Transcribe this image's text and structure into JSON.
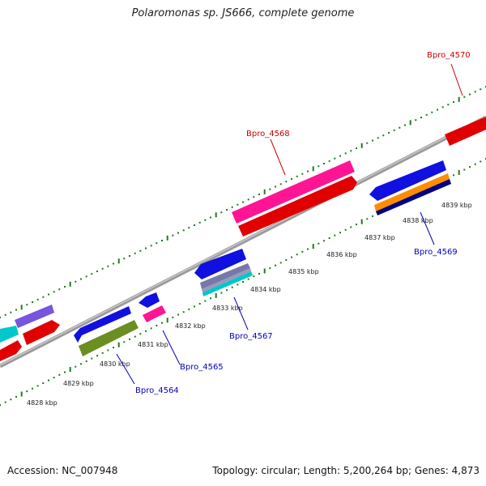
{
  "title": "Polaromonas sp. JS666, complete genome",
  "footer": {
    "accession": "Accession: NC_007948",
    "stats": "Topology: circular; Length: 5,200,264 bp; Genes: 4,873"
  },
  "colors": {
    "backbone": "#8a8a8a",
    "tick_dots": "#1f7a1f",
    "label_top": "#cc0000",
    "label_bottom": "#0000bb"
  },
  "kbp_labels": [
    "4828 kbp",
    "4829 kbp",
    "4830 kbp",
    "4831 kbp",
    "4832 kbp",
    "4833 kbp",
    "4834 kbp",
    "4835 kbp",
    "4836 kbp",
    "4837 kbp",
    "4838 kbp",
    "4839 kbp"
  ],
  "gene_labels": [
    {
      "text": "Bpro_4570",
      "color": "#cc0000"
    },
    {
      "text": "Bpro_4568",
      "color": "#cc0000"
    },
    {
      "text": "Bpro_4569",
      "color": "#0000bb"
    },
    {
      "text": "Bpro_4567",
      "color": "#0000bb"
    },
    {
      "text": "Bpro_4565",
      "color": "#0000bb"
    },
    {
      "text": "Bpro_4564",
      "color": "#0000bb"
    }
  ],
  "genes": [
    {
      "name": "gene-red-left-edge",
      "color": "#e00000"
    },
    {
      "name": "gene-cyan-left-edge",
      "color": "#00c8c8"
    },
    {
      "name": "gene-purple-left",
      "color": "#7755dd"
    },
    {
      "name": "gene-red-left",
      "color": "#e00000"
    },
    {
      "name": "gene-blue-4564",
      "color": "#1010e0"
    },
    {
      "name": "gene-olive-4564",
      "color": "#6b8e23"
    },
    {
      "name": "gene-blue-small",
      "color": "#1010e0"
    },
    {
      "name": "gene-pink-4565",
      "color": "#ff1493"
    },
    {
      "name": "gene-blue-4567",
      "color": "#1010e0"
    },
    {
      "name": "gene-stripes-4567",
      "color": "#666699"
    },
    {
      "name": "gene-cyan-4567",
      "color": "#00c8c8"
    },
    {
      "name": "gene-pink-4568",
      "color": "#ff1493"
    },
    {
      "name": "gene-red-4568",
      "color": "#e00000"
    },
    {
      "name": "gene-blue-4569",
      "color": "#1010e0"
    },
    {
      "name": "gene-orange-4569",
      "color": "#ff8c00"
    },
    {
      "name": "gene-navy-4569",
      "color": "#000080"
    },
    {
      "name": "gene-red-4570",
      "color": "#e00000"
    }
  ]
}
